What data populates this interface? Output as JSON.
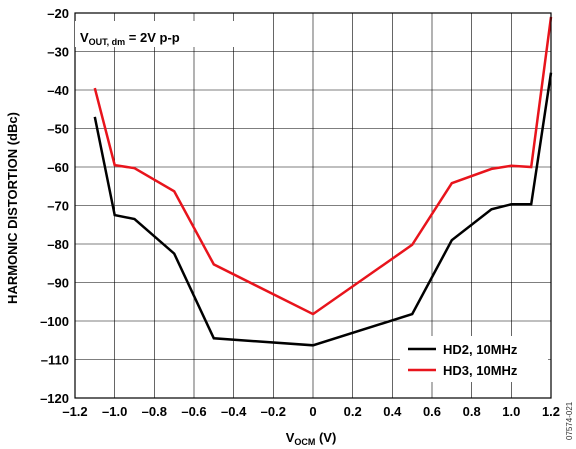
{
  "chart_data": {
    "type": "line",
    "xlabel": "V",
    "xlabel_sub": "OCM",
    "xlabel_unit": " (V)",
    "ylabel": "HARMONIC DISTORTION (dBc)",
    "xlim": [
      -1.2,
      1.2
    ],
    "ylim": [
      -120,
      -20
    ],
    "xticks": [
      -1.2,
      -1.0,
      -0.8,
      -0.6,
      -0.4,
      -0.2,
      0,
      0.2,
      0.4,
      0.6,
      0.8,
      1.0,
      1.2
    ],
    "xtick_labels": [
      "–1.2",
      "–1.0",
      "–0.8",
      "–0.6",
      "–0.4",
      "–0.2",
      "0",
      "0.2",
      "0.4",
      "0.6",
      "0.8",
      "1.0",
      "1.2"
    ],
    "yticks": [
      -20,
      -30,
      -40,
      -50,
      -60,
      -70,
      -80,
      -90,
      -100,
      -110,
      -120
    ],
    "ytick_labels": [
      "–20",
      "–30",
      "–40",
      "–50",
      "–60",
      "–70",
      "–80",
      "–90",
      "–100",
      "–110",
      "–120"
    ],
    "grid": true,
    "legend_position": "bottom-right",
    "annotation": {
      "main": "V",
      "sub": "OUT, dm",
      "rest": " = 2V p-p"
    },
    "series": [
      {
        "name": "HD2, 10MHz",
        "color": "#000000",
        "x": [
          -1.1,
          -1.0,
          -0.9,
          -0.7,
          -0.5,
          0,
          0.5,
          0.7,
          0.9,
          1.0,
          1.1,
          1.2
        ],
        "y": [
          -47,
          -72.5,
          -73.5,
          -82.5,
          -104.5,
          -106.3,
          -98.2,
          -79,
          -71,
          -69.7,
          -69.7,
          -35.5
        ]
      },
      {
        "name": "HD3, 10MHz",
        "color": "#e8141c",
        "x": [
          -1.1,
          -1.0,
          -0.9,
          -0.7,
          -0.5,
          0,
          0.5,
          0.7,
          0.9,
          1.0,
          1.1,
          1.2
        ],
        "y": [
          -39.5,
          -59.5,
          -60.3,
          -66.3,
          -85.3,
          -98.2,
          -80.2,
          -64.2,
          -60.5,
          -59.7,
          -60,
          -21
        ]
      }
    ]
  },
  "figure_id": "07574-021"
}
